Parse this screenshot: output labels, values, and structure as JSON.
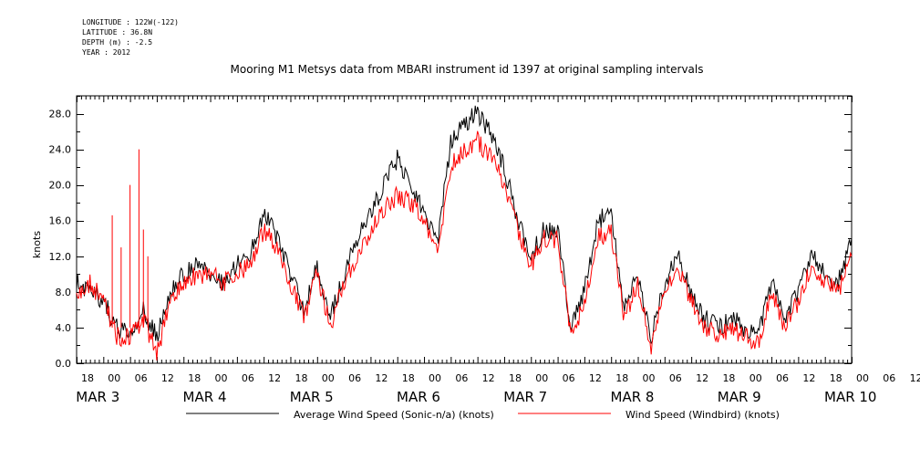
{
  "meta": {
    "longitude": "LONGITUDE : 122W(-122)",
    "latitude": "LATITUDE : 36.8N",
    "depth": "DEPTH (m) : -2.5",
    "year": "YEAR : 2012"
  },
  "chart_data": {
    "type": "line",
    "title": "Mooring M1 Metsys data from MBARI instrument id 1397 at original sampling intervals",
    "ylabel": "knots",
    "xlabel": "",
    "ylim": [
      0,
      30
    ],
    "xlim_hours": [
      0,
      174
    ],
    "y_ticks": [
      "0.0",
      "4.0",
      "8.0",
      "12.0",
      "16.0",
      "20.0",
      "24.0",
      "28.0"
    ],
    "x_hour_labels": [
      "18",
      "00",
      "06",
      "12",
      "18",
      "00",
      "06",
      "12",
      "18",
      "00",
      "06",
      "12",
      "18",
      "00",
      "06",
      "12",
      "18",
      "00",
      "06",
      "12",
      "18",
      "00",
      "06",
      "12",
      "18",
      "00",
      "06",
      "12",
      "18",
      "00",
      "06",
      "12"
    ],
    "x_day_labels": [
      "MAR  3",
      "MAR  4",
      "MAR  5",
      "MAR  6",
      "MAR  7",
      "MAR  8",
      "MAR  9",
      "MAR 10"
    ],
    "legend_position": "bottom",
    "grid": false,
    "series": [
      {
        "name": "Average Wind Speed (Sonic-n/a) (knots)",
        "color": "#000000",
        "x": [
          0,
          3,
          6,
          9,
          12,
          15,
          18,
          21,
          24,
          27,
          30,
          33,
          36,
          39,
          42,
          45,
          48,
          51,
          54,
          57,
          60,
          63,
          66,
          69,
          72,
          75,
          78,
          81,
          84,
          87,
          90,
          93,
          96,
          99,
          102,
          105,
          108,
          111,
          114,
          117,
          120,
          123,
          126,
          129,
          132,
          135,
          138,
          141,
          144,
          147,
          150,
          153,
          156,
          159,
          162,
          165,
          168,
          171,
          174
        ],
        "values": [
          9,
          8,
          7,
          4,
          3,
          6,
          3,
          8,
          10,
          11,
          10,
          9,
          11,
          12,
          17,
          14,
          10,
          6,
          11,
          5,
          10,
          14,
          17,
          20,
          23,
          20,
          17,
          13,
          25,
          27,
          28,
          26,
          22,
          16,
          12,
          15,
          15,
          4,
          8,
          16,
          17,
          6,
          10,
          3,
          9,
          12,
          8,
          5,
          4,
          5,
          4,
          3,
          9,
          5,
          8,
          12,
          10,
          9,
          14
        ]
      },
      {
        "name": "Wind Speed (Windbird) (knots)",
        "color": "#ff0000",
        "x": [
          0,
          3,
          6,
          9,
          12,
          15,
          18,
          21,
          24,
          27,
          30,
          33,
          36,
          39,
          42,
          45,
          48,
          51,
          54,
          57,
          60,
          63,
          66,
          69,
          72,
          75,
          78,
          81,
          84,
          87,
          90,
          93,
          96,
          99,
          102,
          105,
          108,
          111,
          114,
          117,
          120,
          123,
          126,
          129,
          132,
          135,
          138,
          141,
          144,
          147,
          150,
          153,
          156,
          159,
          162,
          165,
          168,
          171,
          174
        ],
        "values": [
          8,
          9,
          7,
          3,
          3,
          5,
          1,
          7,
          9,
          10,
          10,
          9,
          10,
          11,
          15,
          13,
          9,
          5,
          10,
          4,
          9,
          12,
          15,
          17,
          19,
          18,
          16,
          12,
          22,
          24,
          25,
          23,
          20,
          15,
          11,
          14,
          14,
          3,
          7,
          14,
          15,
          5,
          9,
          2,
          8,
          11,
          7,
          4,
          3,
          4,
          3,
          2,
          8,
          4,
          7,
          11,
          9,
          8,
          12
        ]
      }
    ],
    "spikes": {
      "hours": [
        8,
        10,
        12,
        14,
        15,
        16
      ],
      "values": [
        16.6,
        13,
        20,
        24,
        15,
        12
      ]
    }
  }
}
